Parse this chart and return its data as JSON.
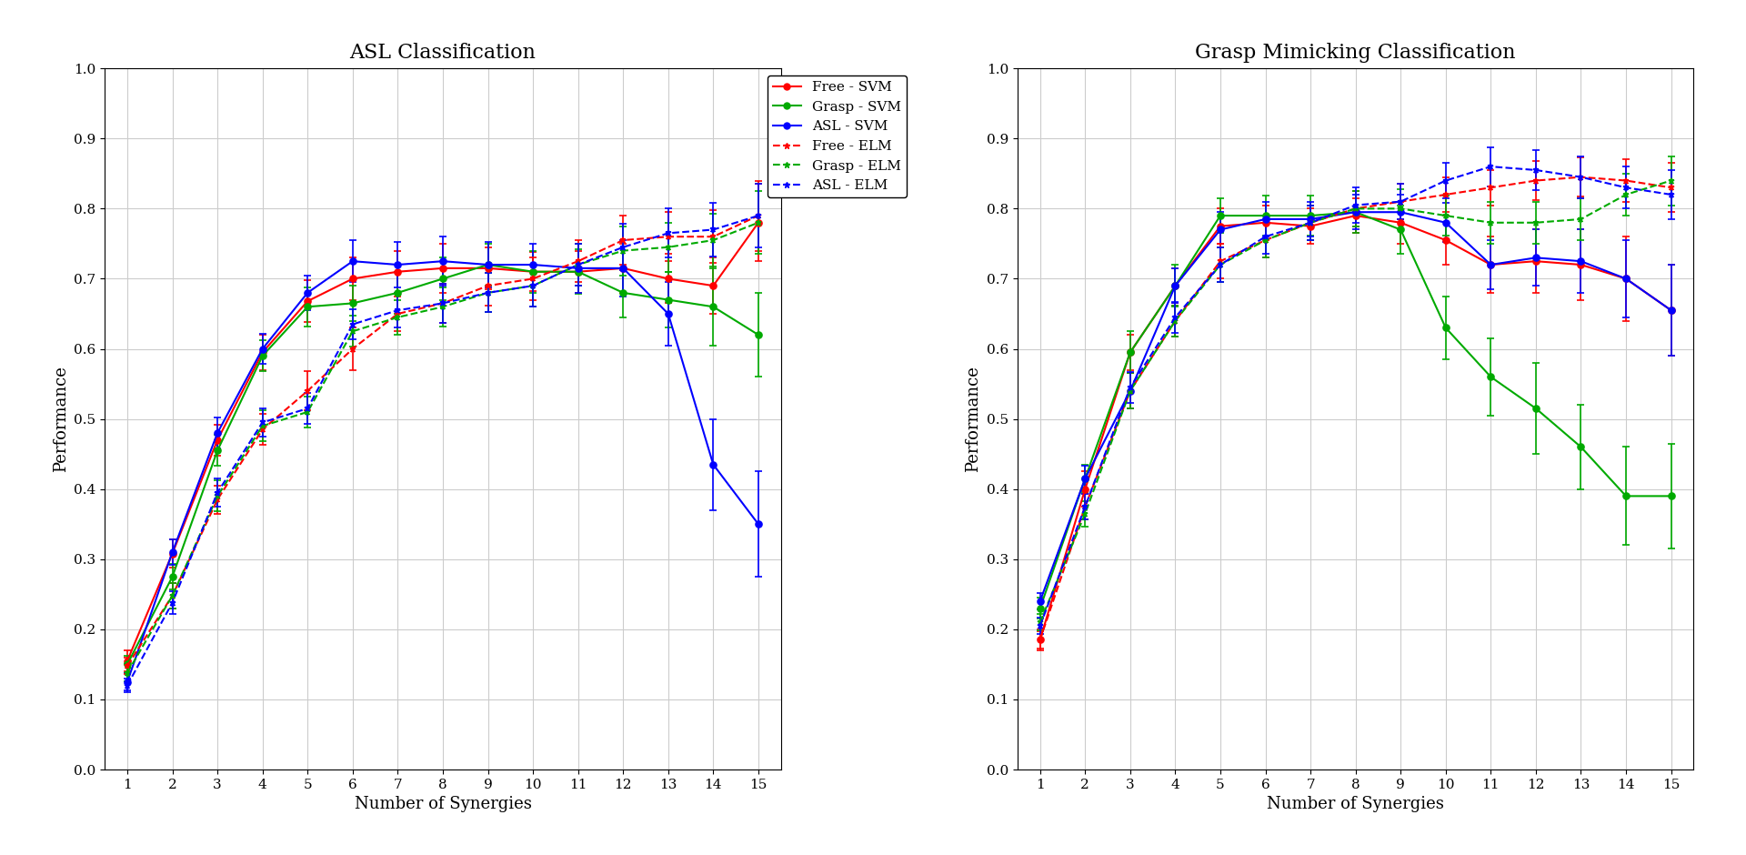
{
  "title_left": "ASL Classification",
  "title_right": "Grasp Mimicking Classification",
  "xlabel": "Number of Synergies",
  "ylabel": "Performance",
  "x": [
    1,
    2,
    3,
    4,
    5,
    6,
    7,
    8,
    9,
    10,
    11,
    12,
    13,
    14,
    15
  ],
  "asl_free_svm": [
    0.155,
    0.308,
    0.47,
    0.595,
    0.668,
    0.7,
    0.71,
    0.715,
    0.715,
    0.71,
    0.71,
    0.715,
    0.7,
    0.69,
    0.78
  ],
  "asl_grasp_svm": [
    0.15,
    0.275,
    0.455,
    0.59,
    0.66,
    0.665,
    0.68,
    0.7,
    0.72,
    0.71,
    0.71,
    0.68,
    0.67,
    0.66,
    0.62
  ],
  "asl_asl_svm": [
    0.125,
    0.31,
    0.48,
    0.6,
    0.68,
    0.725,
    0.72,
    0.725,
    0.72,
    0.72,
    0.715,
    0.715,
    0.65,
    0.435,
    0.35
  ],
  "asl_free_elm": [
    0.148,
    0.248,
    0.385,
    0.485,
    0.54,
    0.6,
    0.65,
    0.665,
    0.69,
    0.7,
    0.725,
    0.755,
    0.76,
    0.76,
    0.79
  ],
  "asl_grasp_elm": [
    0.138,
    0.248,
    0.39,
    0.49,
    0.51,
    0.625,
    0.645,
    0.66,
    0.68,
    0.69,
    0.72,
    0.74,
    0.745,
    0.755,
    0.78
  ],
  "asl_asl_elm": [
    0.12,
    0.238,
    0.395,
    0.495,
    0.515,
    0.635,
    0.655,
    0.665,
    0.68,
    0.69,
    0.72,
    0.745,
    0.765,
    0.77,
    0.79
  ],
  "asl_free_svm_err": [
    0.015,
    0.02,
    0.022,
    0.025,
    0.03,
    0.03,
    0.03,
    0.035,
    0.03,
    0.028,
    0.03,
    0.035,
    0.035,
    0.04,
    0.055
  ],
  "asl_grasp_svm_err": [
    0.012,
    0.018,
    0.022,
    0.022,
    0.028,
    0.025,
    0.03,
    0.03,
    0.03,
    0.03,
    0.032,
    0.035,
    0.04,
    0.055,
    0.06
  ],
  "asl_asl_svm_err": [
    0.012,
    0.018,
    0.022,
    0.022,
    0.025,
    0.03,
    0.032,
    0.035,
    0.032,
    0.03,
    0.035,
    0.04,
    0.045,
    0.065,
    0.075
  ],
  "asl_free_elm_err": [
    0.012,
    0.018,
    0.02,
    0.022,
    0.028,
    0.03,
    0.025,
    0.028,
    0.028,
    0.03,
    0.03,
    0.035,
    0.035,
    0.038,
    0.05
  ],
  "asl_grasp_elm_err": [
    0.012,
    0.018,
    0.022,
    0.022,
    0.022,
    0.022,
    0.025,
    0.028,
    0.028,
    0.03,
    0.03,
    0.035,
    0.035,
    0.038,
    0.045
  ],
  "asl_asl_elm_err": [
    0.01,
    0.016,
    0.02,
    0.02,
    0.022,
    0.022,
    0.025,
    0.028,
    0.028,
    0.03,
    0.03,
    0.033,
    0.035,
    0.038,
    0.045
  ],
  "gm_free_svm": [
    0.185,
    0.4,
    0.595,
    0.69,
    0.775,
    0.78,
    0.775,
    0.79,
    0.78,
    0.755,
    0.72,
    0.725,
    0.72,
    0.7,
    0.655
  ],
  "gm_grasp_svm": [
    0.23,
    0.415,
    0.595,
    0.69,
    0.79,
    0.79,
    0.79,
    0.795,
    0.77,
    0.63,
    0.56,
    0.515,
    0.46,
    0.39,
    0.39
  ],
  "gm_asl_svm": [
    0.24,
    0.415,
    0.54,
    0.69,
    0.77,
    0.785,
    0.785,
    0.795,
    0.795,
    0.78,
    0.72,
    0.73,
    0.725,
    0.7,
    0.655
  ],
  "gm_free_elm": [
    0.185,
    0.375,
    0.54,
    0.64,
    0.725,
    0.755,
    0.78,
    0.8,
    0.81,
    0.82,
    0.83,
    0.84,
    0.845,
    0.84,
    0.83
  ],
  "gm_grasp_elm": [
    0.21,
    0.365,
    0.54,
    0.64,
    0.72,
    0.755,
    0.78,
    0.8,
    0.8,
    0.79,
    0.78,
    0.78,
    0.785,
    0.82,
    0.84
  ],
  "gm_asl_elm": [
    0.205,
    0.375,
    0.545,
    0.645,
    0.72,
    0.76,
    0.78,
    0.805,
    0.81,
    0.84,
    0.86,
    0.855,
    0.845,
    0.83,
    0.82
  ],
  "gm_free_svm_err": [
    0.015,
    0.025,
    0.025,
    0.025,
    0.025,
    0.025,
    0.025,
    0.025,
    0.03,
    0.035,
    0.04,
    0.045,
    0.05,
    0.06,
    0.065
  ],
  "gm_grasp_svm_err": [
    0.015,
    0.02,
    0.03,
    0.03,
    0.025,
    0.028,
    0.028,
    0.03,
    0.035,
    0.045,
    0.055,
    0.065,
    0.06,
    0.07,
    0.075
  ],
  "gm_asl_svm_err": [
    0.012,
    0.018,
    0.025,
    0.025,
    0.025,
    0.025,
    0.025,
    0.025,
    0.025,
    0.028,
    0.035,
    0.04,
    0.045,
    0.055,
    0.065
  ],
  "gm_free_elm_err": [
    0.012,
    0.018,
    0.025,
    0.022,
    0.025,
    0.025,
    0.025,
    0.025,
    0.025,
    0.025,
    0.025,
    0.028,
    0.028,
    0.03,
    0.035
  ],
  "gm_grasp_elm_err": [
    0.012,
    0.018,
    0.025,
    0.022,
    0.025,
    0.025,
    0.025,
    0.025,
    0.028,
    0.028,
    0.03,
    0.03,
    0.03,
    0.03,
    0.035
  ],
  "gm_asl_elm_err": [
    0.012,
    0.018,
    0.022,
    0.022,
    0.025,
    0.025,
    0.025,
    0.025,
    0.025,
    0.025,
    0.028,
    0.028,
    0.03,
    0.03,
    0.035
  ],
  "colors": {
    "free": "#FF0000",
    "grasp": "#00AA00",
    "asl": "#0000FF"
  },
  "ylim_left": [
    0,
    1.0
  ],
  "ylim_right": [
    0,
    1.0
  ],
  "xlim": [
    0.5,
    15.5
  ],
  "yticks_left": [
    0,
    0.1,
    0.2,
    0.3,
    0.4,
    0.5,
    0.6,
    0.7,
    0.8,
    0.9,
    1.0
  ],
  "yticks_right": [
    0,
    0.1,
    0.2,
    0.3,
    0.4,
    0.5,
    0.6,
    0.7,
    0.8,
    0.9,
    1.0
  ],
  "xticks": [
    1,
    2,
    3,
    4,
    5,
    6,
    7,
    8,
    9,
    10,
    11,
    12,
    13,
    14,
    15
  ],
  "bg_color": "#FFFFFF",
  "grid_color": "#CCCCCC",
  "title_fontsize": 16,
  "label_fontsize": 13,
  "tick_fontsize": 11,
  "legend_fontsize": 11,
  "linewidth": 1.5,
  "markersize": 5,
  "capsize": 3,
  "elinewidth": 1.2
}
